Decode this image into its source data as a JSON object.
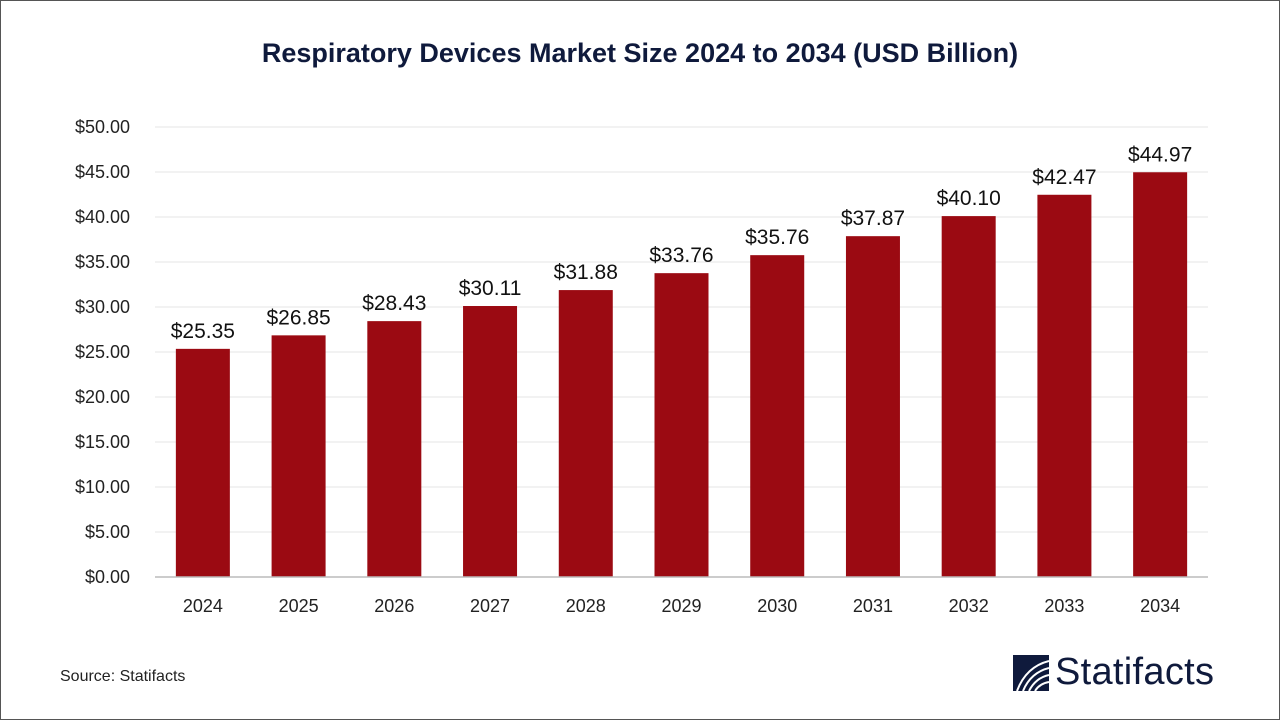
{
  "chart_data": {
    "type": "bar",
    "title": "Respiratory Devices Market Size 2024 to 2034 (USD Billion)",
    "categories": [
      "2024",
      "2025",
      "2026",
      "2027",
      "2028",
      "2029",
      "2030",
      "2031",
      "2032",
      "2033",
      "2034"
    ],
    "values": [
      25.35,
      26.85,
      28.43,
      30.11,
      31.88,
      33.76,
      35.76,
      37.87,
      40.1,
      42.47,
      44.97
    ],
    "data_labels": [
      "$25.35",
      "$26.85",
      "$28.43",
      "$30.11",
      "$31.88",
      "$33.76",
      "$35.76",
      "$37.87",
      "$40.10",
      "$42.47",
      "$44.97"
    ],
    "y_ticks": [
      "$0.00",
      "$5.00",
      "$10.00",
      "$15.00",
      "$20.00",
      "$25.00",
      "$30.00",
      "$35.00",
      "$40.00",
      "$45.00",
      "$50.00"
    ],
    "ylim": [
      0,
      50
    ],
    "xlabel": "",
    "ylabel": "",
    "grid": true,
    "bar_color": "#9b0a12"
  },
  "source": "Source: Statifacts",
  "logo": {
    "text": "Statifacts",
    "color": "#0f1a3c"
  }
}
